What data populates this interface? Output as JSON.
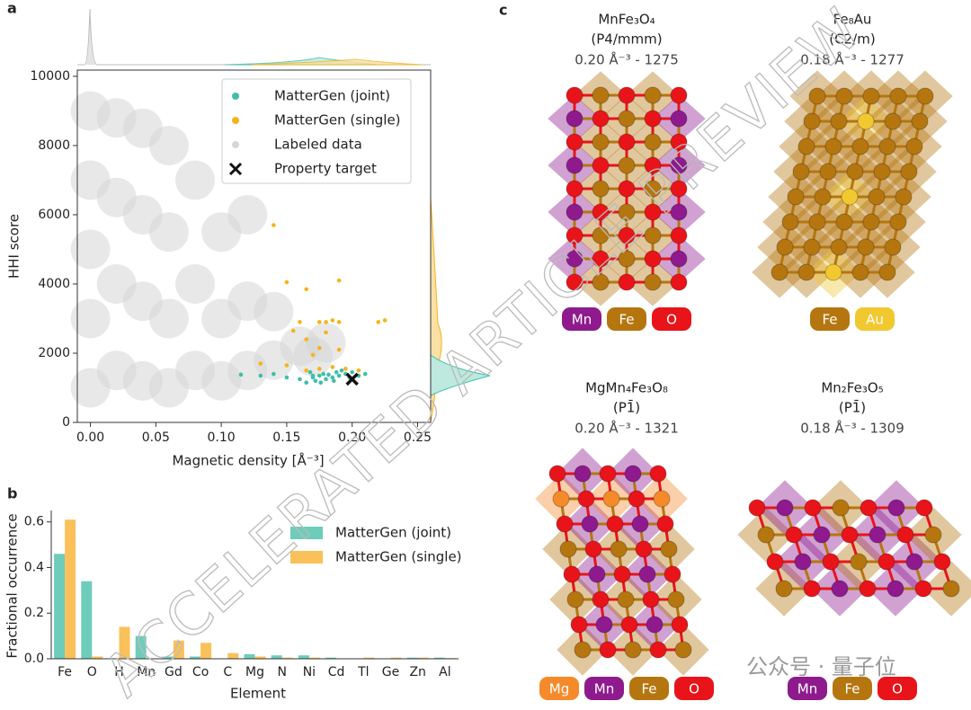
{
  "panel_labels": [
    "a",
    "b",
    "c"
  ],
  "chart_data": [
    {
      "type": "scatter",
      "x_label": "Magnetic density [Å⁻³]",
      "y_label": "HHI score",
      "xlim": [
        -0.01,
        0.26
      ],
      "ylim": [
        0,
        10180
      ],
      "xticks": [
        {
          "value": 0,
          "label": "0.00"
        },
        {
          "value": 0.05,
          "label": "0.05"
        },
        {
          "value": 0.1,
          "label": "0.10"
        },
        {
          "value": 0.15,
          "label": "0.15"
        },
        {
          "value": 0.2,
          "label": "0.20"
        },
        {
          "value": 0.25,
          "label": "0.25"
        }
      ],
      "yticks": [
        0,
        2000,
        4000,
        6000,
        8000,
        10000
      ],
      "series": [
        {
          "name": "MatterGen (joint)",
          "color": "#3fbfa8",
          "marker": "dot",
          "x": [
            0.115,
            0.13,
            0.14,
            0.15,
            0.16,
            0.165,
            0.17,
            0.172,
            0.175,
            0.178,
            0.18,
            0.182,
            0.185,
            0.188,
            0.19,
            0.192,
            0.195,
            0.198,
            0.2,
            0.205,
            0.21,
            0.168,
            0.176,
            0.186,
            0.17
          ],
          "y": [
            1380,
            1350,
            1400,
            1300,
            1250,
            1150,
            1300,
            1200,
            1350,
            1400,
            1250,
            1380,
            1300,
            1450,
            1350,
            1500,
            1400,
            1300,
            1450,
            1350,
            1400,
            1450,
            1150,
            1200,
            1350
          ]
        },
        {
          "name": "MatterGen (single)",
          "color": "#f5b31c",
          "marker": "dot",
          "x": [
            0.14,
            0.15,
            0.19,
            0.165,
            0.155,
            0.16,
            0.175,
            0.18,
            0.185,
            0.19,
            0.18,
            0.22,
            0.225,
            0.165,
            0.175,
            0.19,
            0.13,
            0.15,
            0.165,
            0.175,
            0.185,
            0.195,
            0.205,
            0.17
          ],
          "y": [
            5700,
            4050,
            4100,
            3850,
            2650,
            2900,
            2900,
            2900,
            2950,
            2900,
            2600,
            2900,
            2950,
            2400,
            2150,
            2100,
            1700,
            1650,
            1500,
            1550,
            1600,
            1550,
            1500,
            1950
          ]
        },
        {
          "name": "Labeled data",
          "color": "#d6d6d6",
          "marker": "cloud",
          "x": [
            0,
            0,
            0,
            0,
            0,
            0.02,
            0.02,
            0.02,
            0.02,
            0.04,
            0.04,
            0.04,
            0.04,
            0.06,
            0.06,
            0.06,
            0.06,
            0.08,
            0.08,
            0.08,
            0.1,
            0.1,
            0.1,
            0.12,
            0.12,
            0.12,
            0.14,
            0.14,
            0.16,
            0.17,
            0.18
          ],
          "y": [
            1000,
            3000,
            5000,
            7000,
            9000,
            1500,
            4000,
            6500,
            8800,
            1200,
            3500,
            6000,
            8500,
            1000,
            3000,
            5500,
            8000,
            1500,
            4000,
            7000,
            1200,
            3000,
            5500,
            1500,
            3500,
            6000,
            1800,
            3200,
            2200,
            1900,
            2300
          ]
        },
        {
          "name": "Property target",
          "color": "#111111",
          "marker": "x",
          "x": [
            0.2
          ],
          "y": [
            1250
          ]
        }
      ]
    },
    {
      "type": "bar",
      "x_label": "Element",
      "y_label": "Fractional occurrence",
      "ylim": [
        0,
        0.65
      ],
      "yticks": [
        {
          "value": 0,
          "label": "0.0"
        },
        0.2,
        0.4,
        0.6
      ],
      "categories": [
        "Fe",
        "O",
        "H",
        "Mn",
        "Gd",
        "Co",
        "C",
        "Mg",
        "N",
        "Ni",
        "Cd",
        "Tl",
        "Ge",
        "Zn",
        "Al"
      ],
      "series": [
        {
          "name": "MatterGen (joint)",
          "color": "#5ec6b2",
          "values": [
            0.46,
            0.34,
            0,
            0.1,
            0.01,
            0.01,
            0,
            0.02,
            0.015,
            0.015,
            0.005,
            0,
            0,
            0.005,
            0.005
          ]
        },
        {
          "name": "MatterGen (single)",
          "color": "#f9b948",
          "values": [
            0.61,
            0.01,
            0.14,
            0,
            0.08,
            0.07,
            0.025,
            0.01,
            0.005,
            0.005,
            0,
            0.005,
            0.005,
            0.005,
            0.003
          ]
        }
      ]
    }
  ],
  "structures": [
    {
      "formula": "MnFe₃O₄",
      "space_group": "(P4/mmm)",
      "stats": "0.20 Å⁻³  - 1275",
      "elements": [
        {
          "label": "Mn",
          "color": "#8e1a8e"
        },
        {
          "label": "Fe",
          "color": "#b5760f"
        },
        {
          "label": "O",
          "color": "#e8141a"
        }
      ]
    },
    {
      "formula": "Fe₈Au",
      "space_group": "(C2/m)",
      "stats": "0.18 Å⁻³  - 1277",
      "elements": [
        {
          "label": "Fe",
          "color": "#b5760f"
        },
        {
          "label": "Au",
          "color": "#f2c830"
        }
      ]
    },
    {
      "formula": "MgMn₄Fe₃O₈",
      "space_group": "(P1̄)",
      "stats": "0.20 Å⁻³  - 1321",
      "elements": [
        {
          "label": "Mg",
          "color": "#f58a2a"
        },
        {
          "label": "Mn",
          "color": "#8e1a8e"
        },
        {
          "label": "Fe",
          "color": "#b5760f"
        },
        {
          "label": "O",
          "color": "#e8141a"
        }
      ]
    },
    {
      "formula": "Mn₂Fe₃O₅",
      "space_group": "(P1̄)",
      "stats": "0.18 Å⁻³  - 1309",
      "elements": [
        {
          "label": "Mn",
          "color": "#8e1a8e"
        },
        {
          "label": "Fe",
          "color": "#b5760f"
        },
        {
          "label": "O",
          "color": "#e8141a"
        }
      ]
    }
  ],
  "watermark": "ACCELERATED ARTICLE PREVIEW",
  "source_mark": "公众号 · 量子位"
}
